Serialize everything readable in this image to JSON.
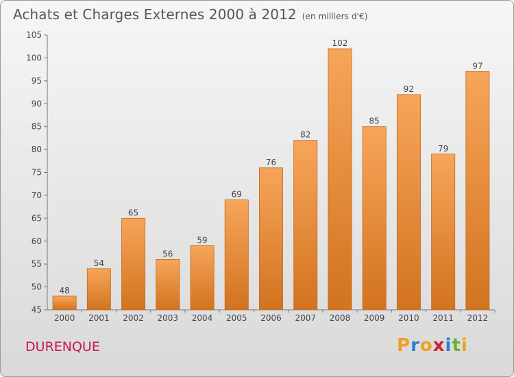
{
  "header": {
    "title": "Achats et Charges Externes 2000 à 2012",
    "unit": "(en milliers d'€)"
  },
  "footer": {
    "city": "DURENQUE",
    "logo_letters": [
      "P",
      "r",
      "o",
      "x",
      "i",
      "t",
      "i"
    ],
    "logo_colors": [
      "#f0a020",
      "#2a7fd0",
      "#f0a020",
      "#d02030",
      "#2a7fd0",
      "#68b030",
      "#f0a020"
    ]
  },
  "chart_data": {
    "type": "bar",
    "title": "Achats et Charges Externes 2000 à 2012",
    "subtitle": "(en milliers d'€)",
    "categories": [
      "2000",
      "2001",
      "2002",
      "2003",
      "2004",
      "2005",
      "2006",
      "2007",
      "2008",
      "2009",
      "2010",
      "2011",
      "2012"
    ],
    "values": [
      48,
      54,
      65,
      56,
      59,
      69,
      76,
      82,
      102,
      85,
      92,
      79,
      97
    ],
    "ylim": [
      45,
      105
    ],
    "yticks": [
      45,
      50,
      55,
      60,
      65,
      70,
      75,
      80,
      85,
      90,
      95,
      100,
      105
    ],
    "grid": false,
    "bar_color_light": "#f7a55a",
    "bar_color_dark": "#d2731f"
  }
}
